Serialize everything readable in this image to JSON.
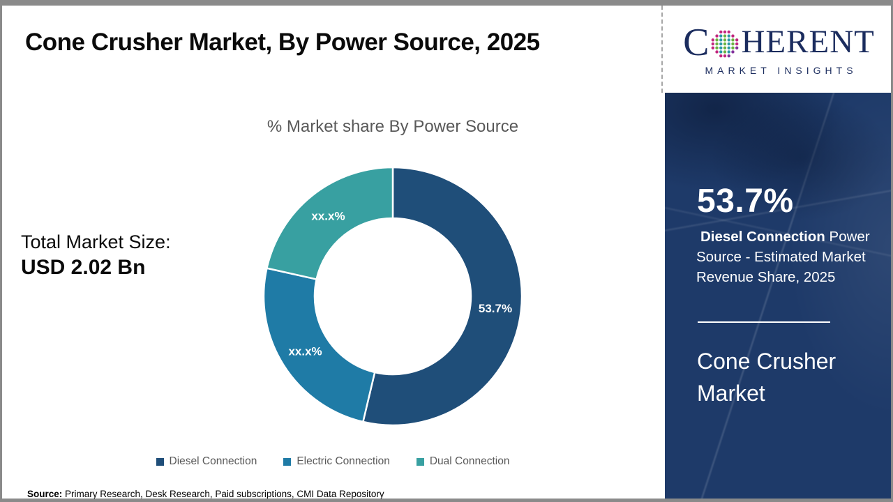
{
  "header": {
    "title": "Cone Crusher Market, By Power Source, 2025"
  },
  "logo": {
    "brand_first_letter": "C",
    "brand_rest": "HERENT",
    "tagline": "MARKET INSIGHTS",
    "navy": "#1b2c5e",
    "globe_colors": [
      "#2a9aa8",
      "#6ab23f",
      "#c2267d",
      "#84329b"
    ]
  },
  "left_stats": {
    "label": "Total Market Size:",
    "value": "USD 2.02 Bn"
  },
  "chart_data": {
    "type": "pie",
    "donut": true,
    "title": "% Market share By Power Source",
    "start_angle_deg": 0,
    "direction": "clockwise",
    "categories": [
      "Diesel Connection",
      "Electric Connection",
      "Dual Connection"
    ],
    "values": [
      53.7,
      24.8,
      21.5
    ],
    "displayed_labels": [
      "53.7%",
      "xx.x%",
      "xx.x%"
    ],
    "colors": [
      "#1f4e79",
      "#1f7ba6",
      "#38a0a1"
    ],
    "legend_position": "bottom"
  },
  "side_panel": {
    "stat_value": "53.7%",
    "desc_bold": "Diesel Connection",
    "desc_rest": " Power Source - Estimated Market Revenue Share, 2025",
    "panel_title": "Cone Crusher Market",
    "background": "#1e3a69"
  },
  "footer": {
    "source_label": "Source:",
    "source_text": " Primary Research, Desk Research, Paid subscriptions, CMI Data Repository"
  }
}
